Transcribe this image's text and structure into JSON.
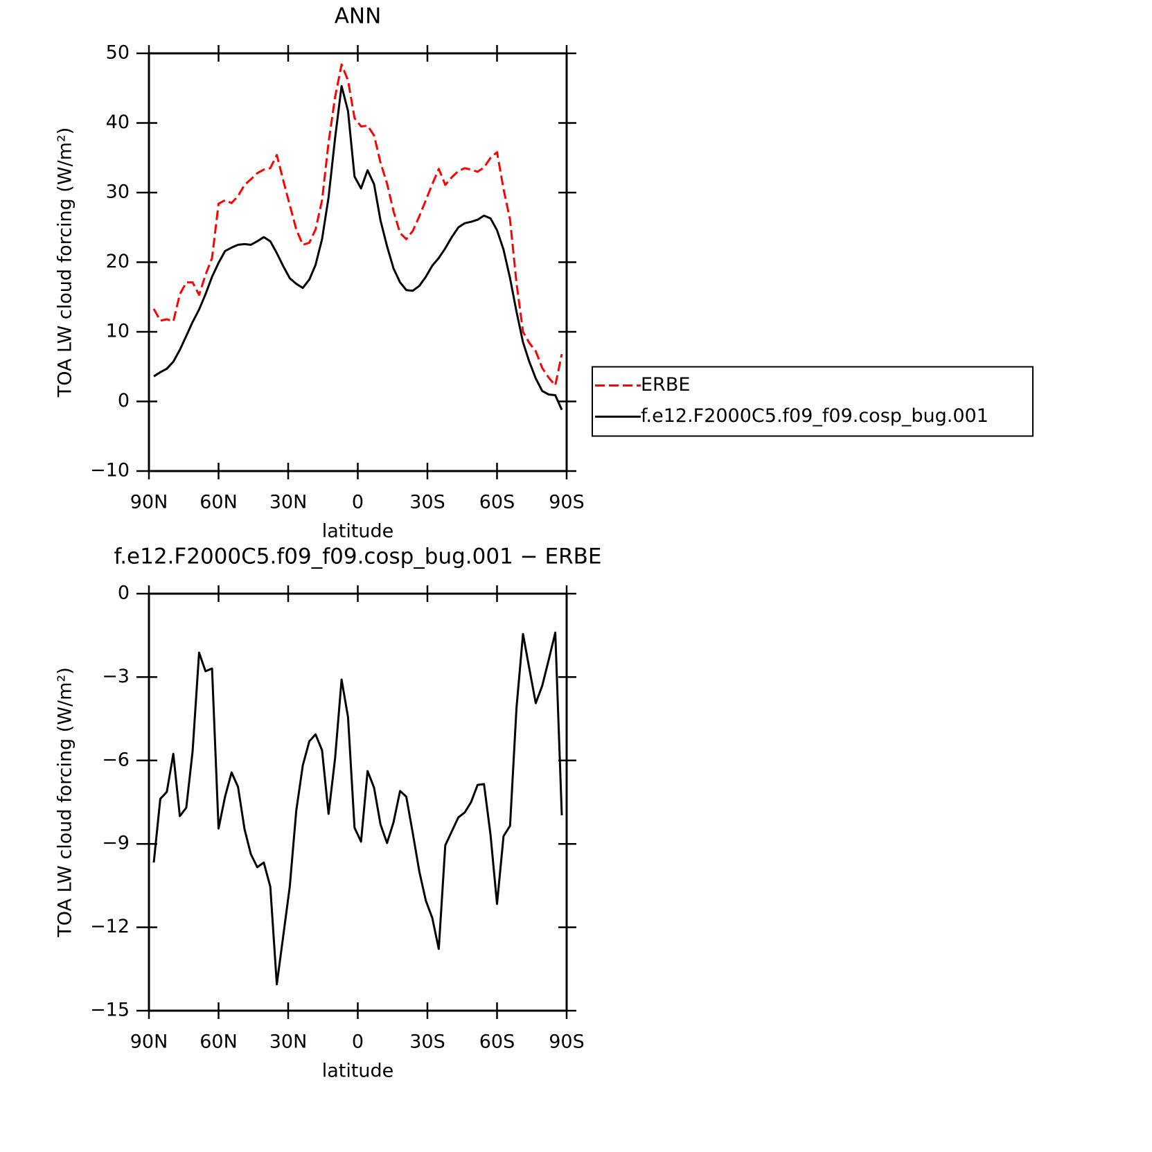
{
  "chart_data": [
    {
      "type": "line",
      "title": "ANN",
      "xlabel": "latitude",
      "ylabel": "TOA LW cloud forcing (W/m²)",
      "x": [
        87.9,
        85.1,
        82.3,
        79.5,
        76.7,
        73.9,
        71.2,
        68.4,
        65.6,
        62.8,
        60.0,
        57.2,
        54.4,
        51.6,
        48.8,
        46.1,
        43.3,
        40.5,
        37.7,
        34.9,
        32.1,
        29.3,
        26.5,
        23.7,
        20.9,
        18.2,
        15.4,
        12.6,
        9.8,
        7.0,
        4.2,
        1.4,
        -1.4,
        -4.2,
        -7.0,
        -9.8,
        -12.6,
        -15.4,
        -18.2,
        -20.9,
        -23.7,
        -26.5,
        -29.3,
        -32.1,
        -34.9,
        -37.7,
        -40.5,
        -43.3,
        -46.1,
        -48.8,
        -51.6,
        -54.4,
        -57.2,
        -60.0,
        -62.8,
        -65.6,
        -68.4,
        -71.2,
        -73.9,
        -76.7,
        -79.5,
        -82.3,
        -85.1,
        -87.9
      ],
      "series": [
        {
          "name": "ERBE",
          "color": "#ff0000",
          "linestyle": "dashed",
          "values": [
            13.3,
            11.6,
            11.8,
            11.5,
            15.4,
            17.1,
            17.1,
            15.3,
            18.2,
            20.6,
            28.4,
            28.9,
            28.5,
            29.5,
            31.1,
            31.9,
            32.8,
            33.3,
            33.5,
            35.4,
            31.7,
            28.2,
            24.7,
            22.5,
            22.8,
            24.7,
            28.9,
            37.2,
            43.7,
            48.4,
            46.1,
            40.7,
            39.5,
            39.6,
            38.2,
            34.3,
            31.3,
            27.3,
            24.2,
            23.3,
            24.5,
            26.6,
            28.9,
            31.2,
            33.4,
            31.1,
            32.2,
            33.1,
            33.5,
            33.3,
            33.0,
            33.6,
            35.0,
            35.8,
            30.5,
            26.1,
            17.0,
            10.0,
            8.4,
            7.2,
            4.8,
            3.4,
            2.3,
            6.8
          ]
        },
        {
          "name": "f.e12.F2000C5.f09_f09.cosp_bug.001",
          "color": "#000000",
          "linestyle": "solid",
          "values": [
            3.6,
            4.2,
            4.7,
            5.7,
            7.4,
            9.4,
            11.4,
            13.2,
            15.4,
            17.9,
            19.9,
            21.6,
            22.1,
            22.5,
            22.6,
            22.5,
            23.0,
            23.6,
            23.0,
            21.3,
            19.4,
            17.7,
            16.9,
            16.3,
            17.5,
            19.6,
            23.3,
            29.3,
            37.8,
            45.3,
            41.7,
            32.3,
            30.6,
            33.2,
            31.2,
            26.0,
            22.3,
            19.1,
            17.1,
            16.0,
            15.9,
            16.6,
            17.9,
            19.5,
            20.6,
            22.0,
            23.6,
            25.0,
            25.6,
            25.8,
            26.1,
            26.7,
            26.3,
            24.6,
            21.8,
            17.7,
            12.9,
            8.5,
            5.7,
            3.3,
            1.5,
            1.0,
            0.9,
            -1.2
          ]
        }
      ],
      "xlim": [
        90,
        -90
      ],
      "xticks": [
        {
          "value": 90,
          "label": "90N"
        },
        {
          "value": 60,
          "label": "60N"
        },
        {
          "value": 30,
          "label": "30N"
        },
        0,
        {
          "value": -30,
          "label": "30S"
        },
        {
          "value": -60,
          "label": "60S"
        },
        {
          "value": -90,
          "label": "90S"
        }
      ],
      "ylim": [
        -10,
        50
      ],
      "yticks": [
        {
          "value": -10,
          "label": "−10"
        },
        0,
        10,
        20,
        30,
        40,
        50
      ],
      "legend": "right"
    },
    {
      "type": "line",
      "title": "f.e12.F2000C5.f09_f09.cosp_bug.001 − ERBE",
      "xlabel": "latitude",
      "ylabel": "TOA LW cloud forcing (W/m²)",
      "x": [
        87.9,
        85.1,
        82.3,
        79.5,
        76.7,
        73.9,
        71.2,
        68.4,
        65.6,
        62.8,
        60.0,
        57.2,
        54.4,
        51.6,
        48.8,
        46.1,
        43.3,
        40.5,
        37.7,
        34.9,
        32.1,
        29.3,
        26.5,
        23.7,
        20.9,
        18.2,
        15.4,
        12.6,
        9.8,
        7.0,
        4.2,
        1.4,
        -1.4,
        -4.2,
        -7.0,
        -9.8,
        -12.6,
        -15.4,
        -18.2,
        -20.9,
        -23.7,
        -26.5,
        -29.3,
        -32.1,
        -34.9,
        -37.7,
        -40.5,
        -43.3,
        -46.1,
        -48.8,
        -51.6,
        -54.4,
        -57.2,
        -60.0,
        -62.8,
        -65.6,
        -68.4,
        -71.2,
        -73.9,
        -76.7,
        -79.5,
        -82.3,
        -85.1,
        -87.9
      ],
      "series": [
        {
          "color": "#000000",
          "linestyle": "solid",
          "values": [
            -9.67,
            -7.38,
            -7.13,
            -5.76,
            -8.0,
            -7.7,
            -5.68,
            -2.12,
            -2.79,
            -2.69,
            -8.45,
            -7.3,
            -6.43,
            -6.95,
            -8.47,
            -9.37,
            -9.84,
            -9.67,
            -10.54,
            -14.05,
            -12.29,
            -10.54,
            -7.8,
            -6.18,
            -5.31,
            -5.06,
            -5.63,
            -7.92,
            -5.93,
            -3.09,
            -4.44,
            -8.42,
            -8.92,
            -6.38,
            -6.98,
            -8.3,
            -8.97,
            -8.22,
            -7.1,
            -7.3,
            -8.62,
            -9.99,
            -11.04,
            -11.66,
            -12.78,
            -9.05,
            -8.55,
            -8.05,
            -7.87,
            -7.5,
            -6.88,
            -6.85,
            -8.67,
            -11.16,
            -8.72,
            -8.35,
            -4.11,
            -1.45,
            -2.69,
            -3.94,
            -3.31,
            -2.37,
            -1.4,
            -7.97
          ]
        }
      ],
      "xlim": [
        90,
        -90
      ],
      "xticks": [
        {
          "value": 90,
          "label": "90N"
        },
        {
          "value": 60,
          "label": "60N"
        },
        {
          "value": 30,
          "label": "30N"
        },
        0,
        {
          "value": -30,
          "label": "30S"
        },
        {
          "value": -60,
          "label": "60S"
        },
        {
          "value": -90,
          "label": "90S"
        }
      ],
      "ylim": [
        -15,
        0
      ],
      "yticks": [
        {
          "value": -15,
          "label": "−15"
        },
        {
          "value": -12,
          "label": "−12"
        },
        {
          "value": -9,
          "label": "−9"
        },
        {
          "value": -6,
          "label": "−6"
        },
        {
          "value": -3,
          "label": "−3"
        },
        0
      ]
    }
  ]
}
